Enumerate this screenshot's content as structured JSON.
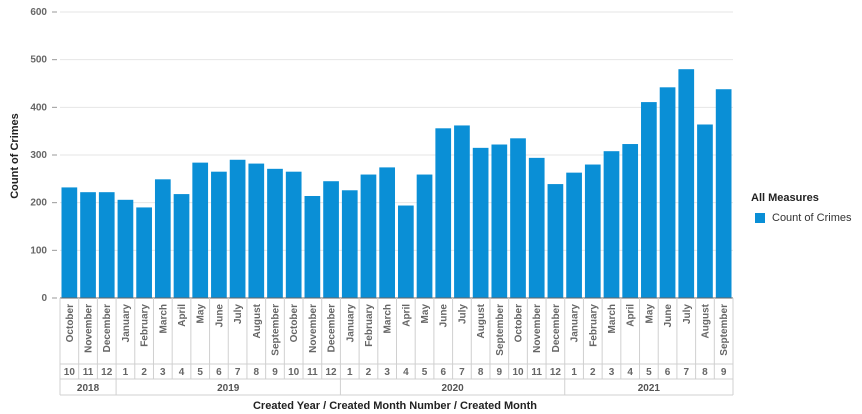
{
  "chart_data": {
    "type": "bar",
    "title": "",
    "xlabel": "Created Year / Created Month Number / Created Month",
    "ylabel": "Count of Crimes",
    "ylim": [
      0,
      600
    ],
    "yticks": [
      0,
      100,
      200,
      300,
      400,
      500,
      600
    ],
    "grid": true,
    "legend_title": "All Measures",
    "legend_position": "right",
    "color": "#0a8fd6",
    "years": [
      {
        "label": "2018",
        "count": 3
      },
      {
        "label": "2019",
        "count": 12
      },
      {
        "label": "2020",
        "count": 12
      },
      {
        "label": "2021",
        "count": 9
      }
    ],
    "categories": [
      {
        "month": "October",
        "num": "10"
      },
      {
        "month": "November",
        "num": "11"
      },
      {
        "month": "December",
        "num": "12"
      },
      {
        "month": "January",
        "num": "1"
      },
      {
        "month": "February",
        "num": "2"
      },
      {
        "month": "March",
        "num": "3"
      },
      {
        "month": "April",
        "num": "4"
      },
      {
        "month": "May",
        "num": "5"
      },
      {
        "month": "June",
        "num": "6"
      },
      {
        "month": "July",
        "num": "7"
      },
      {
        "month": "August",
        "num": "8"
      },
      {
        "month": "September",
        "num": "9"
      },
      {
        "month": "October",
        "num": "10"
      },
      {
        "month": "November",
        "num": "11"
      },
      {
        "month": "December",
        "num": "12"
      },
      {
        "month": "January",
        "num": "1"
      },
      {
        "month": "February",
        "num": "2"
      },
      {
        "month": "March",
        "num": "3"
      },
      {
        "month": "April",
        "num": "4"
      },
      {
        "month": "May",
        "num": "5"
      },
      {
        "month": "June",
        "num": "6"
      },
      {
        "month": "July",
        "num": "7"
      },
      {
        "month": "August",
        "num": "8"
      },
      {
        "month": "September",
        "num": "9"
      },
      {
        "month": "October",
        "num": "10"
      },
      {
        "month": "November",
        "num": "11"
      },
      {
        "month": "December",
        "num": "12"
      },
      {
        "month": "January",
        "num": "1"
      },
      {
        "month": "February",
        "num": "2"
      },
      {
        "month": "March",
        "num": "3"
      },
      {
        "month": "April",
        "num": "4"
      },
      {
        "month": "May",
        "num": "5"
      },
      {
        "month": "June",
        "num": "6"
      },
      {
        "month": "July",
        "num": "7"
      },
      {
        "month": "August",
        "num": "8"
      },
      {
        "month": "September",
        "num": "9"
      }
    ],
    "series": [
      {
        "name": "Count of Crimes",
        "values": [
          232,
          222,
          222,
          206,
          190,
          249,
          218,
          284,
          265,
          290,
          282,
          271,
          265,
          214,
          245,
          226,
          259,
          274,
          194,
          259,
          356,
          362,
          315,
          322,
          335,
          294,
          239,
          263,
          280,
          308,
          323,
          411,
          442,
          480,
          364,
          438
        ]
      }
    ]
  }
}
